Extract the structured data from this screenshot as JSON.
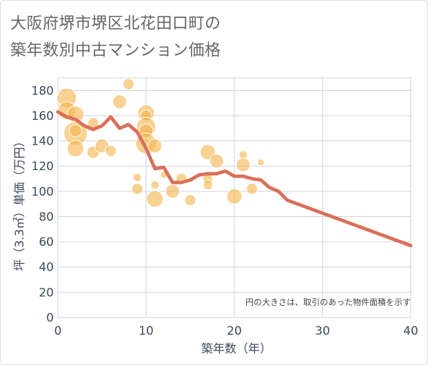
{
  "title": {
    "line1": "大阪府堺市堺区北花田口町の",
    "line2": "築年数別中古マンション価格"
  },
  "colors": {
    "bubble": "#f3b44b",
    "line": "#d9705a",
    "grid": "#c9d3dc",
    "axis_text": "#3a4a5c"
  },
  "chart_data": {
    "type": "scatter",
    "xlabel": "築年数（年）",
    "ylabel": "坪（3.3㎡）単価（万円）",
    "xlim": [
      0,
      40
    ],
    "ylim": [
      0,
      190
    ],
    "xticks": [
      0,
      10,
      20,
      30,
      40
    ],
    "yticks": [
      0,
      20,
      40,
      60,
      80,
      100,
      120,
      140,
      160,
      180
    ],
    "grid": true,
    "annotation": "円の大きさは、取引のあった物件面積を示す",
    "scatter": [
      {
        "x": 1,
        "y": 174,
        "size": 14
      },
      {
        "x": 1,
        "y": 164,
        "size": 13
      },
      {
        "x": 2,
        "y": 161,
        "size": 12
      },
      {
        "x": 2,
        "y": 146,
        "size": 17
      },
      {
        "x": 2,
        "y": 148,
        "size": 9
      },
      {
        "x": 2,
        "y": 134,
        "size": 12
      },
      {
        "x": 4,
        "y": 154,
        "size": 8
      },
      {
        "x": 4,
        "y": 131,
        "size": 9
      },
      {
        "x": 5,
        "y": 136,
        "size": 10
      },
      {
        "x": 6,
        "y": 132,
        "size": 8
      },
      {
        "x": 7,
        "y": 171,
        "size": 10
      },
      {
        "x": 8,
        "y": 185,
        "size": 8
      },
      {
        "x": 9,
        "y": 111,
        "size": 6
      },
      {
        "x": 9,
        "y": 102,
        "size": 8
      },
      {
        "x": 10,
        "y": 162,
        "size": 12
      },
      {
        "x": 10,
        "y": 160,
        "size": 8
      },
      {
        "x": 10,
        "y": 151,
        "size": 14
      },
      {
        "x": 10,
        "y": 148,
        "size": 10
      },
      {
        "x": 10,
        "y": 138,
        "size": 15
      },
      {
        "x": 11,
        "y": 136,
        "size": 10
      },
      {
        "x": 11,
        "y": 105,
        "size": 6
      },
      {
        "x": 11,
        "y": 94,
        "size": 12
      },
      {
        "x": 12,
        "y": 113,
        "size": 5
      },
      {
        "x": 13,
        "y": 100,
        "size": 10
      },
      {
        "x": 14,
        "y": 110,
        "size": 8
      },
      {
        "x": 15,
        "y": 93,
        "size": 8
      },
      {
        "x": 17,
        "y": 131,
        "size": 11
      },
      {
        "x": 17,
        "y": 110,
        "size": 7
      },
      {
        "x": 17,
        "y": 105,
        "size": 7
      },
      {
        "x": 18,
        "y": 124,
        "size": 10
      },
      {
        "x": 20,
        "y": 96,
        "size": 11
      },
      {
        "x": 21,
        "y": 129,
        "size": 6
      },
      {
        "x": 21,
        "y": 121,
        "size": 10
      },
      {
        "x": 22,
        "y": 102,
        "size": 8
      },
      {
        "x": 23,
        "y": 123,
        "size": 5
      }
    ],
    "series": [
      {
        "x": [
          0,
          1,
          2,
          3,
          4,
          5,
          6,
          7,
          8,
          9,
          10,
          11,
          12,
          13,
          14,
          15,
          16,
          17,
          18,
          19,
          20,
          21,
          22,
          23,
          24,
          25,
          26,
          40
        ],
        "values": [
          163,
          159,
          157,
          152,
          149,
          152,
          159,
          150,
          153,
          147,
          134,
          118,
          119,
          107,
          107,
          109,
          113,
          114,
          114,
          116,
          112,
          112,
          110,
          109,
          103,
          100,
          93,
          57
        ]
      }
    ]
  }
}
